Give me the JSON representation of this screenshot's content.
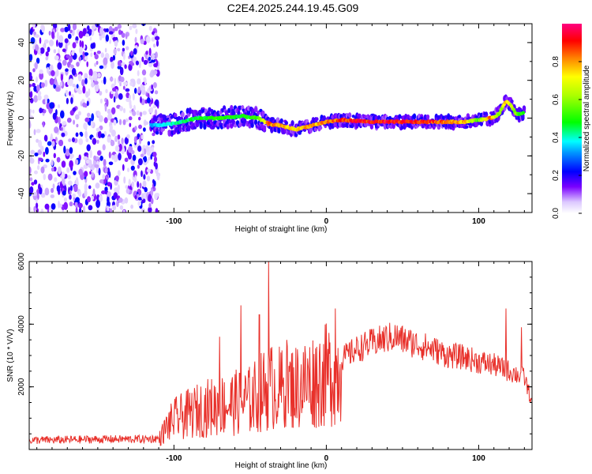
{
  "title": "C2E4.2025.244.19.45.G09",
  "chart_data": [
    {
      "type": "heatmap",
      "xlabel": "Height of straight line (km)",
      "ylabel": "Frequency (Hz)",
      "xlim": [
        -195,
        135
      ],
      "ylim": [
        -50,
        50
      ],
      "x_ticks": [
        -100,
        0,
        100
      ],
      "y_ticks": [
        -40,
        -20,
        0,
        20,
        40
      ],
      "colorbar": {
        "label": "Normalized spectral amplitude",
        "range": [
          0,
          1
        ],
        "ticks": [
          0.0,
          0.2,
          0.4,
          0.6,
          0.8
        ]
      },
      "noise_region": {
        "x_from": -195,
        "x_to": -110
      },
      "ridge": [
        {
          "x": -115,
          "y": -4,
          "amp": 0.35
        },
        {
          "x": -100,
          "y": -3,
          "amp": 0.45
        },
        {
          "x": -85,
          "y": 0,
          "amp": 0.5
        },
        {
          "x": -70,
          "y": 0,
          "amp": 0.55
        },
        {
          "x": -55,
          "y": 1,
          "amp": 0.5
        },
        {
          "x": -45,
          "y": 0,
          "amp": 0.55
        },
        {
          "x": -38,
          "y": -3,
          "amp": 0.9
        },
        {
          "x": -30,
          "y": -4,
          "amp": 0.85
        },
        {
          "x": -20,
          "y": -6,
          "amp": 0.8
        },
        {
          "x": -10,
          "y": -4,
          "amp": 0.85
        },
        {
          "x": 0,
          "y": -2,
          "amp": 0.85
        },
        {
          "x": 10,
          "y": -1,
          "amp": 0.95
        },
        {
          "x": 30,
          "y": -2,
          "amp": 0.98
        },
        {
          "x": 50,
          "y": -2,
          "amp": 0.98
        },
        {
          "x": 70,
          "y": -2,
          "amp": 0.95
        },
        {
          "x": 90,
          "y": -2,
          "amp": 0.85
        },
        {
          "x": 100,
          "y": -1,
          "amp": 0.6
        },
        {
          "x": 108,
          "y": 0,
          "amp": 0.9
        },
        {
          "x": 113,
          "y": 2,
          "amp": 0.6
        },
        {
          "x": 118,
          "y": 9,
          "amp": 0.8
        },
        {
          "x": 121,
          "y": 7,
          "amp": 0.7
        },
        {
          "x": 125,
          "y": 2,
          "amp": 0.6
        },
        {
          "x": 130,
          "y": 3,
          "amp": 0.5
        }
      ]
    },
    {
      "type": "line",
      "xlabel": "Height of straight line (km)",
      "ylabel": "SNR (10 * V/V)",
      "xlim": [
        -195,
        135
      ],
      "ylim": [
        0,
        6000
      ],
      "x_ticks": [
        -100,
        0,
        100
      ],
      "y_ticks": [
        2000,
        4000,
        6000
      ],
      "color": "#e8302a",
      "series": [
        {
          "name": "SNR",
          "x": [
            -195,
            -180,
            -160,
            -140,
            -120,
            -110,
            -105,
            -100,
            -90,
            -80,
            -70,
            -60,
            -50,
            -45,
            -40,
            -35,
            -30,
            -20,
            -10,
            0,
            10,
            20,
            30,
            40,
            45,
            50,
            60,
            70,
            80,
            90,
            100,
            110,
            120,
            125,
            130,
            135
          ],
          "y": [
            300,
            300,
            320,
            330,
            330,
            350,
            800,
            1100,
            1300,
            1500,
            1600,
            1700,
            1800,
            2000,
            2200,
            2300,
            2200,
            2300,
            2500,
            2700,
            2900,
            3200,
            3400,
            3550,
            3600,
            3500,
            3350,
            3200,
            3000,
            2950,
            2800,
            2700,
            2500,
            2400,
            2300,
            1500
          ],
          "spikes": [
            {
              "x": -38,
              "y": 6000
            },
            {
              "x": -44,
              "y": 4300
            },
            {
              "x": -56,
              "y": 4600
            },
            {
              "x": -70,
              "y": 3600
            },
            {
              "x": 6,
              "y": 4500
            },
            {
              "x": 118,
              "y": 4500
            },
            {
              "x": -26,
              "y": 3500
            },
            {
              "x": 128,
              "y": 3900
            }
          ]
        }
      ]
    }
  ]
}
